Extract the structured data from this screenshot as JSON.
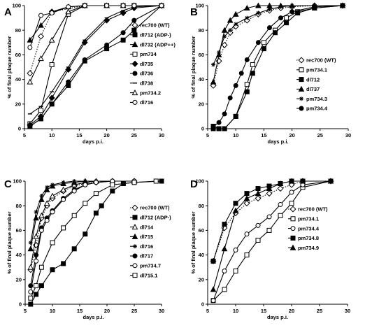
{
  "chart_data": [
    {
      "type": "line",
      "panel_label": "A",
      "xlabel": "days p.i.",
      "ylabel": "% of final plaque number",
      "xlim": [
        5,
        30
      ],
      "ylim": [
        0,
        100
      ],
      "xticks": [
        "5",
        "10",
        "15",
        "20",
        "25",
        "30"
      ],
      "yticks": [
        "0",
        "20",
        "40",
        "60",
        "80",
        "100"
      ],
      "legend_position": "right",
      "series": [
        {
          "name": "rec700 (WT)",
          "marker": "diamond-open",
          "dash": "dotted",
          "x": [
            6,
            8,
            10,
            16,
            30
          ],
          "y": [
            45,
            75,
            95,
            100,
            100
          ]
        },
        {
          "name": "dl712 (ADP-)",
          "marker": "square-filled",
          "dash": "solid",
          "x": [
            6,
            8,
            10,
            13,
            16,
            20,
            23,
            25,
            30
          ],
          "y": [
            2,
            8,
            20,
            35,
            55,
            65,
            72,
            80,
            100
          ]
        },
        {
          "name": "dl732 (ADP++)",
          "marker": "triangle-filled",
          "dash": "solid",
          "x": [
            6,
            8,
            10,
            13,
            16,
            20,
            23,
            25,
            30
          ],
          "y": [
            72,
            84,
            95,
            99,
            100,
            100,
            100,
            100,
            100
          ]
        },
        {
          "name": "pm734",
          "marker": "square-open",
          "dash": "solid",
          "x": [
            6,
            8,
            10,
            13,
            16,
            20,
            23,
            25,
            30
          ],
          "y": [
            4,
            15,
            52,
            93,
            100,
            100,
            100,
            100,
            100
          ]
        },
        {
          "name": "dl735",
          "marker": "diamond-filled",
          "dash": "solid",
          "x": [
            6,
            8,
            10,
            13,
            16,
            20,
            23,
            25,
            30
          ],
          "y": [
            3,
            10,
            25,
            48,
            70,
            88,
            94,
            98,
            100
          ]
        },
        {
          "name": "dl736",
          "marker": "circle-filled",
          "dash": "solid",
          "x": [
            6,
            8,
            10,
            13,
            16,
            20,
            23,
            25,
            30
          ],
          "y": [
            2,
            8,
            20,
            38,
            56,
            68,
            78,
            88,
            100
          ]
        },
        {
          "name": "dl738",
          "marker": "dash",
          "dash": "solid",
          "x": [
            6,
            8,
            10,
            13,
            16,
            20,
            23,
            25,
            30
          ],
          "y": [
            12,
            18,
            30,
            50,
            72,
            90,
            96,
            99,
            100
          ]
        },
        {
          "name": "pm734.2",
          "marker": "triangle-open",
          "dash": "solid",
          "x": [
            6,
            8,
            10,
            13,
            16,
            20,
            23,
            25,
            30
          ],
          "y": [
            38,
            57,
            72,
            95,
            100,
            100,
            100,
            100,
            100
          ]
        },
        {
          "name": "dl716",
          "marker": "circle-open",
          "dash": "solid",
          "x": [
            6,
            8,
            10,
            13,
            16,
            20,
            23,
            25,
            30
          ],
          "y": [
            66,
            92,
            94,
            99,
            100,
            100,
            100,
            100,
            100
          ]
        }
      ]
    },
    {
      "type": "line",
      "panel_label": "B",
      "xlabel": "days p.i.",
      "ylabel": "% of final plaque number",
      "xlim": [
        5,
        30
      ],
      "ylim": [
        0,
        100
      ],
      "xticks": [
        "5",
        "10",
        "15",
        "20",
        "25",
        "30"
      ],
      "yticks": [
        "0",
        "20",
        "40",
        "60",
        "80",
        "100"
      ],
      "legend_position": "right",
      "series": [
        {
          "name": "rec700 (WT)",
          "marker": "diamond-open",
          "dash": "dotted",
          "x": [
            6,
            7,
            8,
            9,
            10,
            12,
            14,
            16,
            18,
            20,
            24,
            29
          ],
          "y": [
            35,
            55,
            68,
            78,
            83,
            88,
            93,
            96,
            98,
            99,
            100,
            100
          ]
        },
        {
          "name": "pm734.1",
          "marker": "square-open",
          "dash": "solid",
          "x": [
            6,
            7,
            8,
            10,
            12,
            13,
            15,
            17,
            19,
            21,
            24,
            29
          ],
          "y": [
            2,
            0,
            0,
            10,
            36,
            52,
            70,
            80,
            90,
            95,
            98,
            100
          ]
        },
        {
          "name": "dl712",
          "marker": "square-filled",
          "dash": "solid",
          "x": [
            6,
            7,
            8,
            10,
            12,
            13,
            15,
            17,
            19,
            21,
            24,
            29
          ],
          "y": [
            0,
            0,
            0,
            10,
            30,
            45,
            65,
            78,
            86,
            94,
            98,
            100
          ]
        },
        {
          "name": "dl737",
          "marker": "triangle-filled",
          "dash": "solid",
          "x": [
            6,
            7,
            8,
            9,
            10,
            12,
            14,
            16,
            18,
            20,
            24,
            29
          ],
          "y": [
            38,
            60,
            80,
            88,
            93,
            98,
            100,
            100,
            100,
            100,
            100,
            100
          ]
        },
        {
          "name": "pm734.3",
          "marker": "asterisk",
          "dash": "solid",
          "x": [
            6,
            7,
            8,
            9,
            10,
            12,
            14,
            16,
            18,
            20,
            24,
            29
          ],
          "y": [
            52,
            62,
            75,
            80,
            85,
            90,
            94,
            97,
            99,
            100,
            100,
            100
          ]
        },
        {
          "name": "pm734.4",
          "marker": "circle-filled",
          "dash": "solid",
          "x": [
            6,
            7,
            8,
            9,
            10,
            11,
            12,
            14,
            16,
            18,
            20,
            24,
            29
          ],
          "y": [
            2,
            5,
            12,
            25,
            35,
            45,
            56,
            70,
            82,
            90,
            95,
            99,
            100
          ]
        }
      ]
    },
    {
      "type": "line",
      "panel_label": "C",
      "xlabel": "days p.i.",
      "ylabel": "% of final plaque number",
      "xlim": [
        5,
        30
      ],
      "ylim": [
        0,
        100
      ],
      "xticks": [
        "5",
        "10",
        "15",
        "20",
        "25",
        "30"
      ],
      "yticks": [
        "0",
        "20",
        "40",
        "60",
        "80",
        "100"
      ],
      "legend_position": "right",
      "series": [
        {
          "name": "rec700 (WT)",
          "marker": "diamond-open",
          "dash": "dotted",
          "x": [
            6,
            7,
            8,
            9,
            10,
            12,
            14,
            16,
            18,
            21,
            25
          ],
          "y": [
            28,
            48,
            70,
            80,
            86,
            92,
            96,
            98,
            99,
            100,
            100
          ]
        },
        {
          "name": "dl712 (ADP-)",
          "marker": "square-filled",
          "dash": "solid",
          "x": [
            6,
            7,
            8,
            10,
            12,
            14,
            16,
            18,
            19,
            21,
            23,
            25,
            30
          ],
          "y": [
            0,
            8,
            15,
            28,
            33,
            45,
            57,
            74,
            80,
            92,
            98,
            99,
            100
          ]
        },
        {
          "name": "dl714",
          "marker": "triangle-open",
          "dash": "solid",
          "x": [
            6,
            7,
            8,
            9,
            10,
            12,
            14,
            16,
            18,
            21,
            25
          ],
          "y": [
            30,
            55,
            72,
            82,
            88,
            93,
            97,
            99,
            100,
            100,
            100
          ]
        },
        {
          "name": "dl715",
          "marker": "triangle-filled",
          "dash": "solid",
          "x": [
            6,
            7,
            8,
            9,
            10,
            12,
            14,
            16,
            18,
            21,
            25
          ],
          "y": [
            45,
            70,
            85,
            93,
            96,
            98,
            99,
            100,
            100,
            100,
            100
          ]
        },
        {
          "name": "dl716",
          "marker": "asterisk",
          "dash": "solid",
          "x": [
            6,
            7,
            8,
            9,
            10,
            12,
            14,
            16,
            18,
            21,
            25
          ],
          "y": [
            50,
            75,
            88,
            95,
            97,
            99,
            100,
            100,
            100,
            100,
            100
          ]
        },
        {
          "name": "dl717",
          "marker": "circle-filled",
          "dash": "solid",
          "x": [
            6,
            7,
            8,
            9,
            10,
            12,
            14,
            16,
            18,
            21,
            25
          ],
          "y": [
            15,
            40,
            62,
            70,
            76,
            86,
            93,
            97,
            99,
            100,
            100
          ]
        },
        {
          "name": "pm734.7",
          "marker": "circle-open",
          "dash": "solid",
          "x": [
            6,
            7,
            8,
            9,
            10,
            12,
            14,
            16,
            18,
            21,
            25
          ],
          "y": [
            10,
            35,
            60,
            68,
            75,
            85,
            92,
            97,
            99,
            100,
            100
          ]
        },
        {
          "name": "dl715.1",
          "marker": "square-open",
          "dash": "solid",
          "x": [
            6,
            7,
            8,
            10,
            12,
            14,
            16,
            18,
            21,
            25,
            29
          ],
          "y": [
            5,
            15,
            30,
            50,
            62,
            72,
            82,
            90,
            97,
            99,
            100
          ]
        }
      ]
    },
    {
      "type": "line",
      "panel_label": "D",
      "xlabel": "days p.i.",
      "ylabel": "% of final plaque number",
      "xlim": [
        5,
        30
      ],
      "ylim": [
        0,
        100
      ],
      "xticks": [
        "5",
        "10",
        "15",
        "20",
        "25",
        "30"
      ],
      "yticks": [
        "0",
        "20",
        "40",
        "60",
        "80",
        "100"
      ],
      "legend_position": "right",
      "series": [
        {
          "name": "rec700 (WT)",
          "marker": "diamond-open",
          "dash": "dotted",
          "x": [
            6,
            8,
            10,
            12,
            14,
            16,
            18,
            20,
            22,
            27
          ],
          "y": [
            35,
            62,
            74,
            82,
            86,
            90,
            94,
            97,
            100,
            100
          ]
        },
        {
          "name": "pm734.1",
          "marker": "square-open",
          "dash": "solid",
          "x": [
            6,
            8,
            10,
            12,
            14,
            16,
            18,
            20,
            22,
            27
          ],
          "y": [
            3,
            12,
            27,
            40,
            52,
            60,
            72,
            82,
            95,
            100
          ]
        },
        {
          "name": "pm734.4",
          "marker": "circle-open",
          "dash": "solid",
          "x": [
            6,
            8,
            10,
            12,
            14,
            16,
            18,
            20,
            22,
            27
          ],
          "y": [
            3,
            27,
            44,
            57,
            64,
            71,
            81,
            91,
            97,
            100
          ]
        },
        {
          "name": "pm734.8",
          "marker": "square-filled",
          "dash": "solid",
          "x": [
            6,
            8,
            10,
            12,
            14,
            16,
            18,
            20,
            22,
            27
          ],
          "y": [
            35,
            65,
            82,
            90,
            94,
            96,
            98,
            100,
            100,
            100
          ]
        },
        {
          "name": "pm734.9",
          "marker": "triangle-filled",
          "dash": "solid",
          "x": [
            6,
            8,
            10,
            12,
            14,
            16,
            18,
            20,
            22,
            27
          ],
          "y": [
            12,
            45,
            76,
            86,
            90,
            94,
            98,
            100,
            100,
            100
          ]
        }
      ]
    }
  ]
}
